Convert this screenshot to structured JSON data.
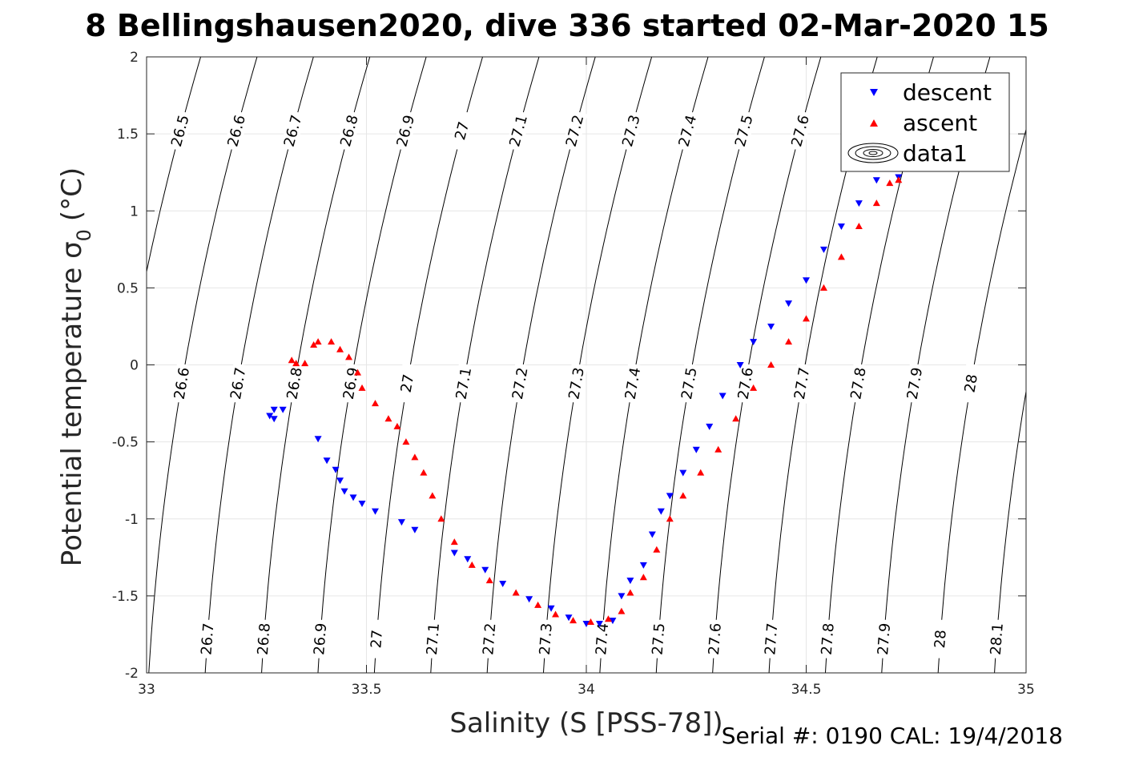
{
  "chart_data": {
    "type": "scatter",
    "title": "8 Bellingshausen2020, dive 336 started 02-Mar-2020 15",
    "xlabel": "Salinity (S [PSS-78])",
    "ylabel": "Potential temperature σ",
    "ylabel_sub": "0",
    "ylabel_unit": "(°C)",
    "footer": "Serial #: 0190  CAL: 19/4/2018",
    "xlim": [
      33,
      35
    ],
    "ylim": [
      -2,
      2
    ],
    "grid": true,
    "legend_position": "top-right",
    "x_ticks": [
      "33",
      "33.5",
      "34",
      "34.5",
      "35"
    ],
    "y_ticks": [
      "-2",
      "-1.5",
      "-1",
      "-0.5",
      "0",
      "0.5",
      "1",
      "1.5",
      "2"
    ],
    "legend": [
      "descent",
      "ascent",
      "data1"
    ],
    "colors": {
      "descent": "#0000ff",
      "ascent": "#ff0000",
      "contour": "#000000"
    },
    "contour_labels": [
      "26.5",
      "26.6",
      "26.7",
      "26.8",
      "26.9",
      "27",
      "27.1",
      "27.2",
      "27.3",
      "27.4",
      "27.5",
      "27.6",
      "27.7",
      "27.8",
      "27.9",
      "28",
      "28.1"
    ],
    "series": [
      {
        "name": "descent",
        "marker": "triangle-down",
        "x": [
          33.28,
          33.29,
          33.29,
          33.31,
          33.39,
          33.41,
          33.43,
          33.44,
          33.45,
          33.47,
          33.49,
          33.52,
          33.58,
          33.61,
          33.7,
          33.73,
          33.77,
          33.81,
          33.87,
          33.92,
          33.96,
          34.0,
          34.03,
          34.06,
          34.08,
          34.1,
          34.13,
          34.15,
          34.17,
          34.19,
          34.22,
          34.25,
          34.28,
          34.31,
          34.35,
          34.38,
          34.42,
          34.46,
          34.5,
          34.54,
          34.58,
          34.62,
          34.66,
          34.69,
          34.71
        ],
        "y": [
          -0.33,
          -0.29,
          -0.35,
          -0.29,
          -0.48,
          -0.62,
          -0.68,
          -0.75,
          -0.82,
          -0.86,
          -0.9,
          -0.95,
          -1.02,
          -1.07,
          -1.22,
          -1.26,
          -1.33,
          -1.42,
          -1.52,
          -1.58,
          -1.64,
          -1.68,
          -1.68,
          -1.66,
          -1.5,
          -1.4,
          -1.3,
          -1.1,
          -0.95,
          -0.85,
          -0.7,
          -0.55,
          -0.4,
          -0.2,
          0.0,
          0.15,
          0.25,
          0.4,
          0.55,
          0.75,
          0.9,
          1.05,
          1.2,
          1.28,
          1.22
        ]
      },
      {
        "name": "ascent",
        "marker": "triangle-up",
        "x": [
          33.33,
          33.34,
          33.36,
          33.38,
          33.39,
          33.42,
          33.44,
          33.46,
          33.48,
          33.49,
          33.52,
          33.55,
          33.57,
          33.59,
          33.61,
          33.63,
          33.65,
          33.67,
          33.7,
          33.74,
          33.78,
          33.84,
          33.89,
          33.93,
          33.97,
          34.01,
          34.05,
          34.08,
          34.1,
          34.13,
          34.16,
          34.19,
          34.22,
          34.26,
          34.3,
          34.34,
          34.38,
          34.42,
          34.46,
          34.5,
          34.54,
          34.58,
          34.62,
          34.66,
          34.69,
          34.71
        ],
        "y": [
          0.03,
          0.01,
          0.01,
          0.13,
          0.15,
          0.15,
          0.1,
          0.05,
          -0.05,
          -0.15,
          -0.25,
          -0.35,
          -0.4,
          -0.5,
          -0.6,
          -0.7,
          -0.85,
          -1.0,
          -1.15,
          -1.3,
          -1.4,
          -1.48,
          -1.56,
          -1.62,
          -1.66,
          -1.67,
          -1.65,
          -1.6,
          -1.48,
          -1.38,
          -1.2,
          -1.0,
          -0.85,
          -0.7,
          -0.55,
          -0.35,
          -0.15,
          0.0,
          0.15,
          0.3,
          0.5,
          0.7,
          0.9,
          1.05,
          1.18,
          1.2
        ]
      }
    ]
  }
}
